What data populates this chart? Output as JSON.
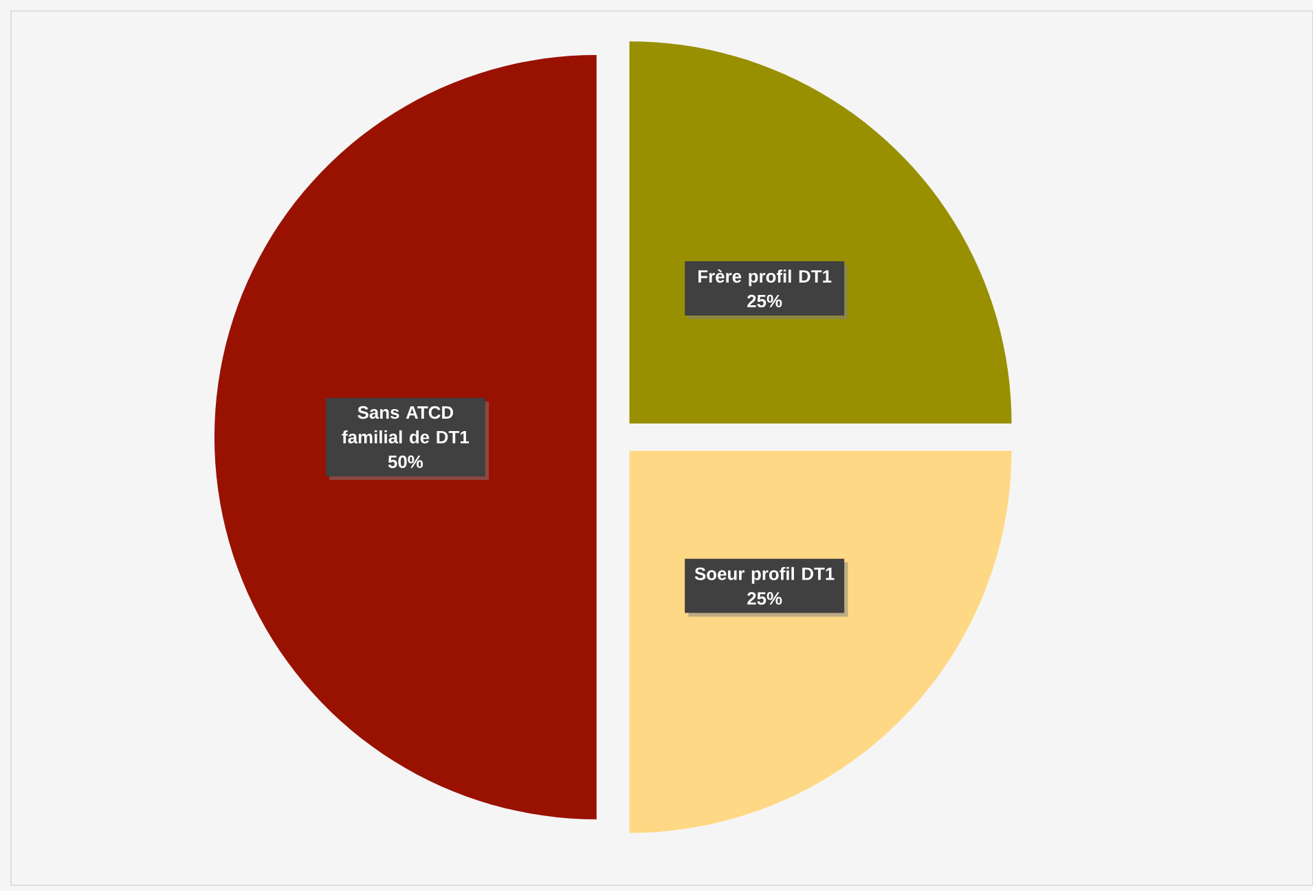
{
  "chart_data": {
    "type": "pie",
    "categories": [
      "Frère profil DT1",
      "Soeur profil DT1",
      "Sans ATCD familial de DT1"
    ],
    "values": [
      25,
      25,
      50
    ],
    "colors": [
      "#989000",
      "#ffd885",
      "#991100"
    ],
    "value_labels": [
      "25%",
      "25%",
      "50%"
    ]
  }
}
